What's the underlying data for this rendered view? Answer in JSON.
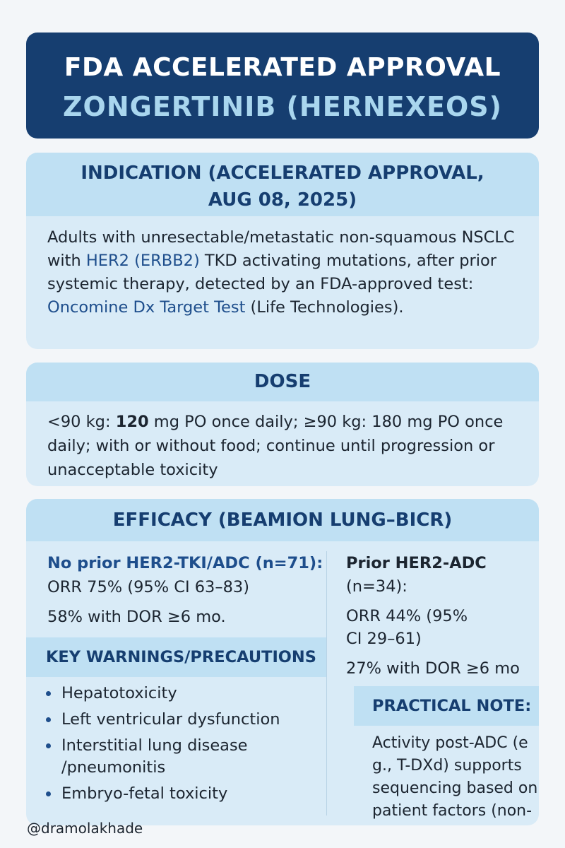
{
  "title": {
    "line1": "FDA ACCELERATED APPROVAL",
    "line2": "ZONGERTINIB (HERNEXEOS)"
  },
  "indication": {
    "heading_line1": "INDICATION (ACCELERATED APPROVAL,",
    "heading_line2": "AUG 08, 2025)",
    "text_1": "Adults with unresectable/metastatic non-squamous NSCLC with ",
    "text_hl1": "HER2 (ERBB2)",
    "text_2": " TKD activating mutations, after prior systemic therapy, detected by an FDA-approved test: ",
    "text_hl2": "Oncomine Dx Target Test",
    "text_3": " (Life Technologies)."
  },
  "dose": {
    "heading": "DOSE",
    "text_1": "<90 kg: ",
    "text_bold": "120",
    "text_2": " mg PO once daily; ≥90 kg: 180 mg PO once daily; with or without food; continue until progression or unacceptable toxicity"
  },
  "efficacy": {
    "heading": "EFFICACY (BEAMION LUNG–BICR)",
    "left": {
      "heading": "No prior HER2-TKI/ADC (n=71):",
      "line1": "ORR 75% (95% CI 63–83)",
      "line2": "58% with DOR ≥6 mo."
    },
    "right": {
      "heading": "Prior HER2-ADC",
      "n": "(n=34):",
      "line1": "ORR 44% (95%",
      "line2": "CI 29–61)",
      "line3": "27% with DOR ≥6 mo"
    }
  },
  "warnings": {
    "heading": "KEY WARNINGS/PRECAUTIONS",
    "items": [
      "Hepatotoxicity",
      "Left ventricular dysfunction",
      "Interstitial lung disease /pneumonitis",
      "Embryo-fetal toxicity"
    ]
  },
  "practical_note": {
    "heading": "PRACTICAL NOTE:",
    "text": "Activity post-ADC (e g., T-DXd) supports sequencing based on patient factors (non-randomized data)"
  },
  "handle": "@dramolakhade"
}
